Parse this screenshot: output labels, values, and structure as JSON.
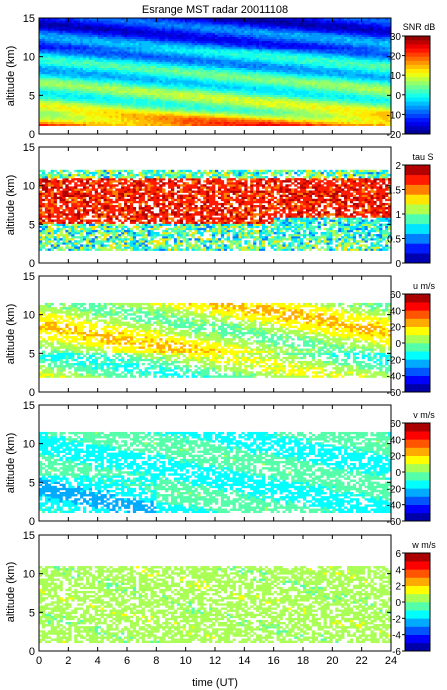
{
  "figure": {
    "title": "Esrange MST radar 20011108",
    "xlabel": "time (UT)"
  },
  "chart_data": [
    {
      "type": "heatmap",
      "title": "Esrange MST radar 20011108",
      "ylabel": "altitude (km)",
      "xlim": [
        0,
        24
      ],
      "ylim": [
        0,
        15
      ],
      "x_ticks": [
        "0",
        "2",
        "4",
        "6",
        "8",
        "10",
        "12",
        "14",
        "16",
        "18",
        "20",
        "22",
        "24"
      ],
      "y_ticks": [
        "0",
        "5",
        "10",
        "15"
      ],
      "colorbar": {
        "label": "SNR dB",
        "range": [
          -20,
          30
        ],
        "ticks": [
          "-20",
          "-10",
          "0",
          "10",
          "20",
          "30"
        ],
        "colormap": "jet",
        "levels": 24
      },
      "data_summary": {
        "alt_min_km": 1.0,
        "alt_max_km": 15.0,
        "low_alt_peak_db": 26,
        "upper_alt_db": -10
      }
    },
    {
      "type": "heatmap",
      "ylabel": "altitude (km)",
      "xlim": [
        0,
        24
      ],
      "ylim": [
        0,
        15
      ],
      "x_ticks": [
        "0",
        "2",
        "4",
        "6",
        "8",
        "10",
        "12",
        "14",
        "16",
        "18",
        "20",
        "22",
        "24"
      ],
      "y_ticks": [
        "0",
        "5",
        "10",
        "15"
      ],
      "colorbar": {
        "label": "tau S",
        "range": [
          0,
          2
        ],
        "ticks": [
          "0",
          "0.5",
          "1",
          "1.5",
          "2"
        ],
        "colormap": "jet",
        "levels": 10
      },
      "data_summary": {
        "alt_min_km": 1.5,
        "alt_max_km": 12.0,
        "high_tau_band_km": [
          5,
          11
        ]
      }
    },
    {
      "type": "heatmap",
      "ylabel": "altitude (km)",
      "xlim": [
        0,
        24
      ],
      "ylim": [
        0,
        15
      ],
      "x_ticks": [
        "0",
        "2",
        "4",
        "6",
        "8",
        "10",
        "12",
        "14",
        "16",
        "18",
        "20",
        "22",
        "24"
      ],
      "y_ticks": [
        "0",
        "5",
        "10",
        "15"
      ],
      "colorbar": {
        "label": "u m/s",
        "range": [
          -60,
          60
        ],
        "ticks": [
          "-60",
          "-40",
          "-20",
          "0",
          "20",
          "40",
          "60"
        ],
        "colormap": "jet",
        "levels": 12
      },
      "data_summary": {
        "alt_min_km": 2.0,
        "alt_max_km": 11.5,
        "typical_value": 15
      }
    },
    {
      "type": "heatmap",
      "ylabel": "altitude (km)",
      "xlim": [
        0,
        24
      ],
      "ylim": [
        0,
        15
      ],
      "x_ticks": [
        "0",
        "2",
        "4",
        "6",
        "8",
        "10",
        "12",
        "14",
        "16",
        "18",
        "20",
        "22",
        "24"
      ],
      "y_ticks": [
        "0",
        "5",
        "10",
        "15"
      ],
      "colorbar": {
        "label": "v m/s",
        "range": [
          -60,
          60
        ],
        "ticks": [
          "-60",
          "-40",
          "-20",
          "0",
          "20",
          "40",
          "60"
        ],
        "colormap": "jet",
        "levels": 12
      },
      "data_summary": {
        "alt_min_km": 1.0,
        "alt_max_km": 11.5,
        "typical_value": -8
      }
    },
    {
      "type": "heatmap",
      "ylabel": "altitude (km)",
      "xlim": [
        0,
        24
      ],
      "ylim": [
        0,
        15
      ],
      "x_ticks": [
        "0",
        "2",
        "4",
        "6",
        "8",
        "10",
        "12",
        "14",
        "16",
        "18",
        "20",
        "22",
        "24"
      ],
      "y_ticks": [
        "0",
        "5",
        "10",
        "15"
      ],
      "colorbar": {
        "label": "w m/s",
        "range": [
          -6,
          6
        ],
        "ticks": [
          "-6",
          "-4",
          "-2",
          "0",
          "2",
          "4",
          "6"
        ],
        "colormap": "jet",
        "levels": 12
      },
      "data_summary": {
        "alt_min_km": 1.0,
        "alt_max_km": 11.0,
        "typical_value": 0.5
      }
    }
  ]
}
